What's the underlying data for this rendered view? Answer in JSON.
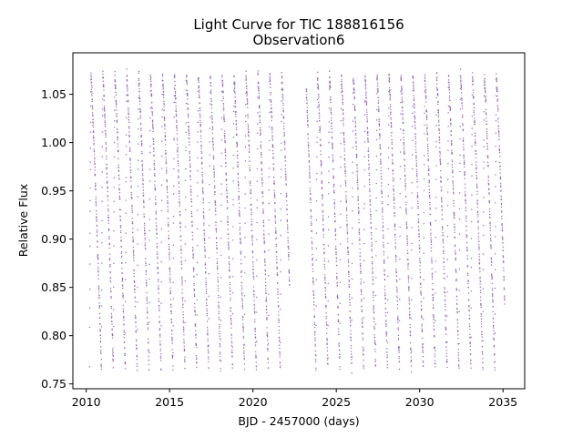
{
  "chart_data": {
    "type": "scatter",
    "title": "Light Curve for TIC 188816156",
    "subtitle": "Observation6",
    "xlabel": "BJD - 2457000 (days)",
    "ylabel": "Relative Flux",
    "xlim": [
      2009.2,
      2036.3
    ],
    "ylim": [
      0.745,
      1.093
    ],
    "xticks": [
      2010,
      2015,
      2020,
      2025,
      2030,
      2035
    ],
    "xtick_labels": [
      "2010",
      "2015",
      "2020",
      "2025",
      "2030",
      "2035"
    ],
    "yticks": [
      0.75,
      0.8,
      0.85,
      0.9,
      0.95,
      1.0,
      1.05
    ],
    "ytick_labels": [
      "0.75",
      "0.80",
      "0.85",
      "0.90",
      "0.95",
      "1.00",
      "1.05"
    ],
    "grid": false,
    "marker_color": "#9467bd",
    "series": [
      {
        "segments": [
          {
            "x_start": 2010.2,
            "x_end": 2022.2
          },
          {
            "x_start": 2023.2,
            "x_end": 2035.1
          }
        ],
        "period_days": 0.715,
        "flux_max": 1.07,
        "flux_baseline": 1.0,
        "flux_min": 0.765
      }
    ]
  }
}
